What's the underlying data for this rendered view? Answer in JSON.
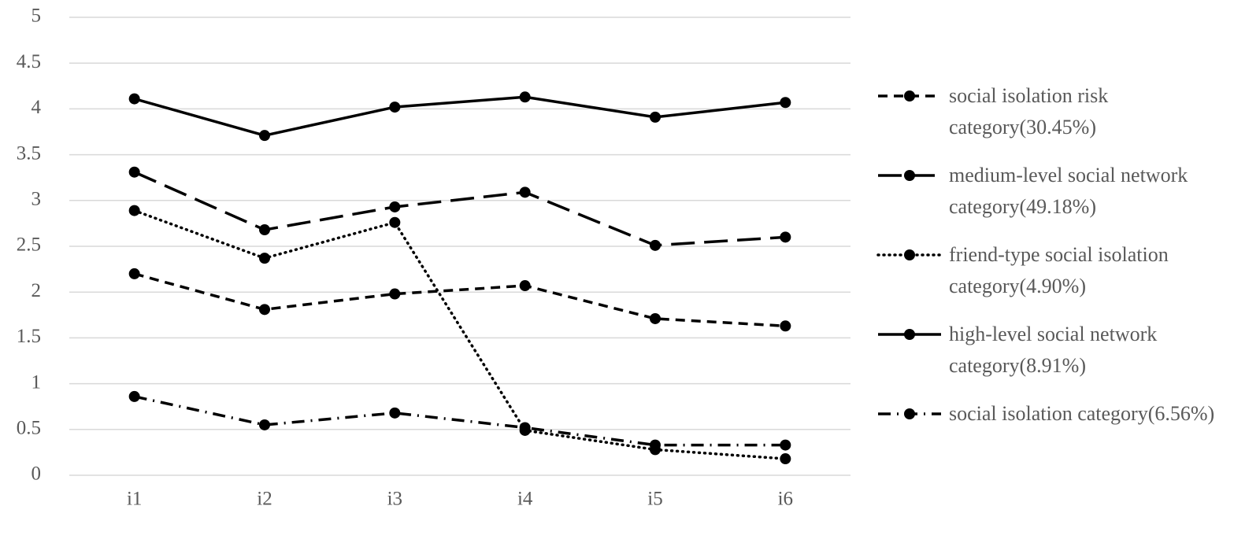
{
  "chart_data": {
    "type": "line",
    "categories": [
      "i1",
      "i2",
      "i3",
      "i4",
      "i5",
      "i6"
    ],
    "ylim": [
      0,
      5
    ],
    "yticks": [
      0,
      0.5,
      1,
      1.5,
      2,
      2.5,
      3,
      3.5,
      4,
      4.5,
      5
    ],
    "grid": true,
    "legend": "right",
    "series": [
      {
        "name": "social isolation risk category(30.45%)",
        "color": "#000000",
        "style": "dashed",
        "values": [
          2.2,
          1.81,
          1.98,
          2.07,
          1.71,
          1.63
        ]
      },
      {
        "name": "medium-level social network category(49.18%)",
        "color": "#000000",
        "style": "long-dash",
        "values": [
          3.31,
          2.68,
          2.93,
          3.09,
          2.51,
          2.6
        ]
      },
      {
        "name": "friend-type social isolation category(4.90%)",
        "color": "#000000",
        "style": "dotted",
        "values": [
          2.89,
          2.37,
          2.76,
          0.49,
          0.28,
          0.18
        ]
      },
      {
        "name": "high-level social network category(8.91%)",
        "color": "#000000",
        "style": "solid",
        "values": [
          4.11,
          3.71,
          4.02,
          4.13,
          3.91,
          4.07
        ]
      },
      {
        "name": "social isolation category(6.56%)",
        "color": "#000000",
        "style": "dash-dot",
        "values": [
          0.86,
          0.55,
          0.68,
          0.52,
          0.33,
          0.33
        ]
      }
    ]
  }
}
